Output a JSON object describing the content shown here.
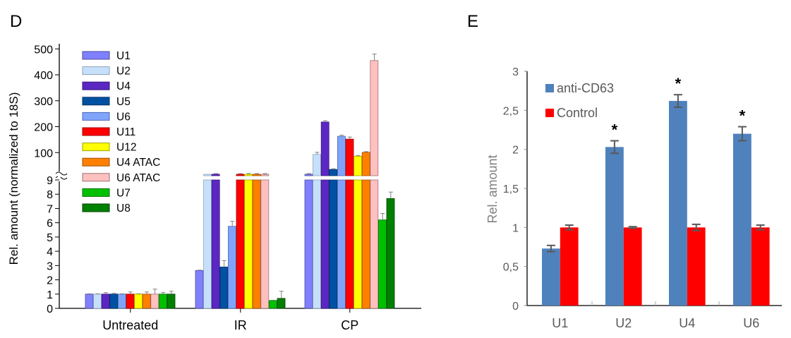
{
  "chart_data": [
    {
      "panel": "D",
      "type": "bar",
      "title": "",
      "xlabel": "",
      "ylabel": "Rel. amount (normalized to 18S)",
      "categories": [
        "Untreated",
        "IR",
        "CP"
      ],
      "axis_break": {
        "lower_range": [
          0,
          9
        ],
        "upper_range": [
          0,
          500
        ]
      },
      "y_ticks_lower": [
        "0",
        "1",
        "2",
        "3",
        "4",
        "5",
        "6",
        "7",
        "8",
        "9"
      ],
      "y_ticks_upper": [
        "100",
        "200",
        "300",
        "400",
        "500"
      ],
      "legend_position": "top-left",
      "series": [
        {
          "name": "U1",
          "color": "#8080ff",
          "edge": "#4a4a9e",
          "values": [
            1.0,
            2.65,
            15
          ],
          "errors": [
            0.02,
            0.03,
            2
          ]
        },
        {
          "name": "U2",
          "color": "#c6e0fb",
          "edge": "#8aa2bb",
          "values": [
            1.0,
            9.5,
            93
          ],
          "errors": [
            0.02,
            0.0,
            8
          ]
        },
        {
          "name": "U4",
          "color": "#5b27c2",
          "edge": "#3a1780",
          "values": [
            1.0,
            12,
            218
          ],
          "errors": [
            0.1,
            1,
            5
          ]
        },
        {
          "name": "U5",
          "color": "#0151a3",
          "edge": "#002f66",
          "values": [
            1.0,
            2.9,
            35
          ],
          "errors": [
            0.05,
            0.45,
            2
          ]
        },
        {
          "name": "U6",
          "color": "#80a4fc",
          "edge": "#4a6bb0",
          "values": [
            1.0,
            5.75,
            163
          ],
          "errors": [
            0.02,
            0.35,
            4
          ]
        },
        {
          "name": "U11",
          "color": "#ff0000",
          "edge": "#a00000",
          "values": [
            1.0,
            12,
            152
          ],
          "errors": [
            0.15,
            1,
            8
          ]
        },
        {
          "name": "U12",
          "color": "#ffff00",
          "edge": "#a0a000",
          "values": [
            1.0,
            13,
            86
          ],
          "errors": [
            0.02,
            2,
            3
          ]
        },
        {
          "name": "U4 ATAC",
          "color": "#ff8000",
          "edge": "#a05000",
          "values": [
            1.0,
            11,
            101
          ],
          "errors": [
            0.15,
            1,
            1
          ]
        },
        {
          "name": "U6 ATAC",
          "color": "#ffc0c0",
          "edge": "#a07070",
          "values": [
            1.0,
            12,
            455
          ],
          "errors": [
            0.35,
            2,
            25
          ]
        },
        {
          "name": "U7",
          "color": "#00c000",
          "edge": "#007000",
          "values": [
            1.0,
            0.55,
            6.2
          ],
          "errors": [
            0.12,
            0.02,
            0.45
          ]
        },
        {
          "name": "U8",
          "color": "#008000",
          "edge": "#004000",
          "values": [
            1.0,
            0.7,
            7.7
          ],
          "errors": [
            0.2,
            0.5,
            0.45
          ]
        }
      ]
    },
    {
      "panel": "E",
      "type": "bar",
      "title": "",
      "xlabel": "",
      "ylabel": "Rel. amount",
      "categories": [
        "U1",
        "U2",
        "U4",
        "U6"
      ],
      "ylim": [
        0,
        3
      ],
      "y_ticks": [
        "0",
        "0,5",
        "1",
        "1,5",
        "2",
        "2,5",
        "3"
      ],
      "legend_position": "top-left",
      "grid": false,
      "significance_markers": [
        "",
        "*",
        "*",
        "*"
      ],
      "series": [
        {
          "name": "anti-CD63",
          "color": "#4f81bd",
          "values": [
            0.73,
            2.03,
            2.62,
            2.2
          ],
          "errors": [
            0.04,
            0.08,
            0.08,
            0.09
          ]
        },
        {
          "name": "Control",
          "color": "#ff0000",
          "values": [
            1.0,
            1.0,
            1.0,
            1.0
          ],
          "errors": [
            0.03,
            0.01,
            0.04,
            0.03
          ]
        }
      ]
    }
  ],
  "labels": {
    "panel_d": "D",
    "panel_e": "E",
    "star": "*"
  }
}
